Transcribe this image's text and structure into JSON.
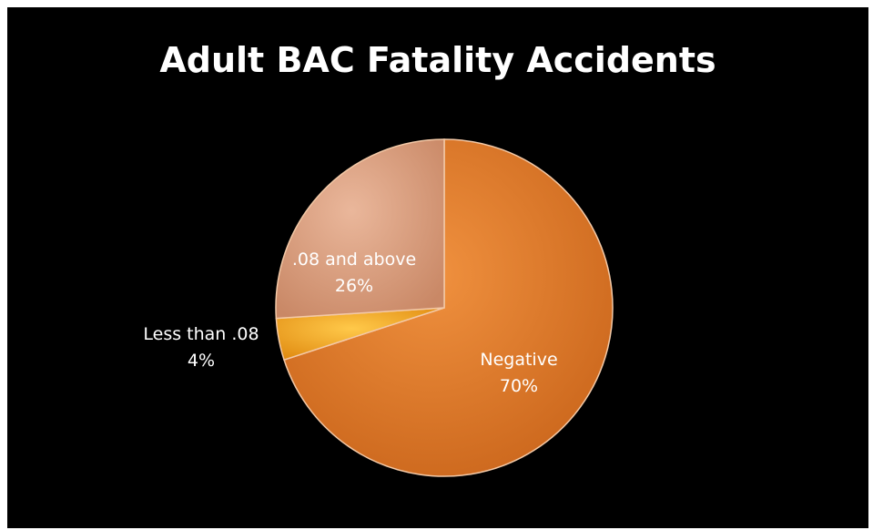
{
  "chart_data": {
    "type": "pie",
    "title": "Adult BAC Fatality Accidents",
    "slices": [
      {
        "name": "Negative",
        "value": 70,
        "label": "70%",
        "color": "#e8802e"
      },
      {
        "name": "Less than .08",
        "value": 4,
        "label": "4%",
        "color": "#f5a623"
      },
      {
        "name": ".08 and above",
        "value": 26,
        "label": "26%",
        "color": "#e4a98a"
      }
    ],
    "start_angle_deg": 0,
    "direction": "clockwise",
    "background": "#000000"
  }
}
